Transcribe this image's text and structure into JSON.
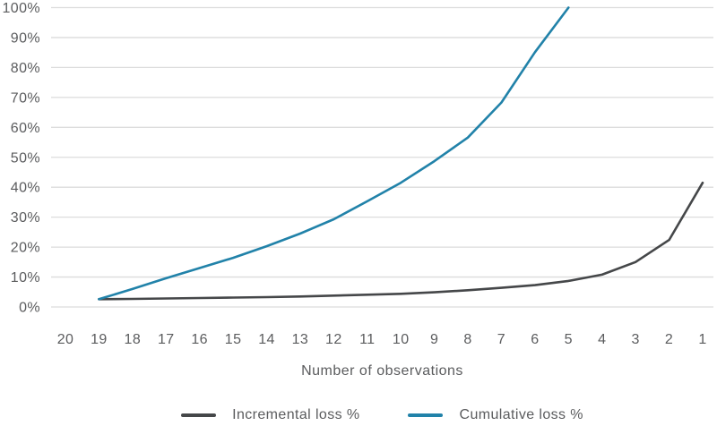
{
  "chart_data": {
    "type": "line",
    "title": "",
    "xlabel": "Number of observations",
    "ylabel": "",
    "ylim": [
      0,
      100
    ],
    "y_tick_step_percent": 10,
    "y_tick_labels": [
      "0%",
      "10%",
      "20%",
      "30%",
      "40%",
      "50%",
      "60%",
      "70%",
      "80%",
      "90%",
      "100%"
    ],
    "x_tick_labels": [
      "20",
      "19",
      "18",
      "17",
      "16",
      "15",
      "14",
      "13",
      "12",
      "11",
      "10",
      "9",
      "8",
      "7",
      "6",
      "5",
      "4",
      "3",
      "2",
      "1"
    ],
    "x_axis_reversed": true,
    "grid": "horizontal-only",
    "legend_position": "bottom-center",
    "colors": {
      "grid": "#dcdcdc",
      "text": "#5b5c5e",
      "incremental": "#454749",
      "cumulative": "#2182a9"
    },
    "series": [
      {
        "name": "Incremental loss %",
        "color": "#454749",
        "x": [
          19,
          18,
          17,
          16,
          15,
          14,
          13,
          12,
          11,
          10,
          9,
          8,
          7,
          6,
          5,
          4,
          3,
          2,
          1
        ],
        "values": [
          2.6,
          2.7,
          2.85,
          3.0,
          3.15,
          3.3,
          3.5,
          3.8,
          4.1,
          4.4,
          4.9,
          5.6,
          6.4,
          7.3,
          8.7,
          10.8,
          15.0,
          22.4,
          41.5
        ]
      },
      {
        "name": "Cumulative loss %",
        "color": "#2182a9",
        "x": [
          19,
          18,
          17,
          16,
          15,
          14,
          13,
          12,
          11,
          10,
          9,
          8,
          7,
          6,
          5
        ],
        "values": [
          2.6,
          6.0,
          9.6,
          13.0,
          16.4,
          20.3,
          24.5,
          29.3,
          35.3,
          41.5,
          48.7,
          56.6,
          68.3,
          85.1,
          100.0
        ]
      }
    ]
  }
}
